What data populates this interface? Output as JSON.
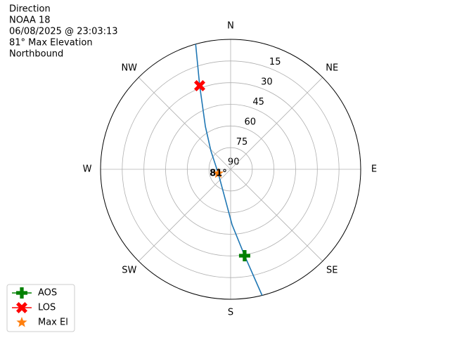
{
  "chart_data": {
    "type": "polar",
    "title_lines": [
      "Direction",
      "NOAA 18",
      "06/08/2025 @ 23:03:13",
      "81° Max Elevation",
      "Northbound"
    ],
    "xticks": [
      {
        "value": 0,
        "label": "N"
      },
      {
        "value": 45,
        "label": "NE"
      },
      {
        "value": 90,
        "label": "E"
      },
      {
        "value": 135,
        "label": "SE"
      },
      {
        "value": 180,
        "label": "S"
      },
      {
        "value": 225,
        "label": "SW"
      },
      {
        "value": 270,
        "label": "W"
      },
      {
        "value": 315,
        "label": "NW"
      }
    ],
    "ylim": [
      90,
      0
    ],
    "yticks": [
      90,
      75,
      60,
      45,
      30,
      15
    ],
    "grid": true,
    "track": {
      "color": "#1f77b4",
      "x": [
        344.4,
        339.7,
        329.5,
        312.9,
        251.6,
        196.4,
        178.5,
        170.8,
        166.0
      ],
      "values": [
        0,
        28.3,
        55.6,
        71.4,
        81,
        72.8,
        51.6,
        29.4,
        0
      ]
    },
    "series": [
      {
        "name": "AOS",
        "color": "#008000",
        "marker": "plus",
        "line": true,
        "x": [
          170.8
        ],
        "values": [
          29.4
        ]
      },
      {
        "name": "LOS",
        "color": "#ff0000",
        "marker": "x",
        "line": true,
        "x": [
          339.7
        ],
        "values": [
          28.3
        ]
      },
      {
        "name": "Max El",
        "color": "#ff7f0e",
        "marker": "star",
        "line": false,
        "x": [
          251.6
        ],
        "values": [
          81
        ],
        "value_labels": [
          "81°"
        ]
      }
    ],
    "legend": "lower left"
  }
}
